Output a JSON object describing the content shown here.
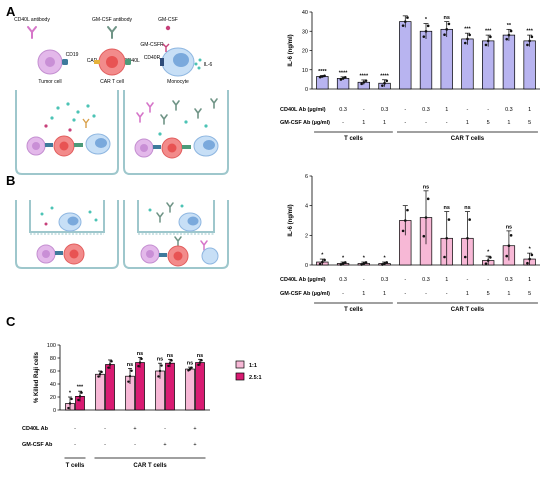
{
  "panels": {
    "a": "A",
    "b": "B",
    "c": "C"
  },
  "schematic": {
    "cd40l_antibody": "CD40L antibody",
    "gmcsf_antibody": "GM-CSF antibody",
    "gmcsf": "GM-CSF",
    "gmcsfr": "GM-CSFR",
    "cd19": "CD19",
    "car": "CAR",
    "cd40l": "CD40L",
    "cd40r": "CD40R",
    "il6": "IL-6",
    "tumor_cell": "Tumor cell",
    "car_t_cell": "CAR T cell",
    "monocyte": "Monocyte"
  },
  "chart_data": [
    {
      "type": "bar",
      "ylabel": "IL-6 (ng/ml)",
      "ylim": [
        0,
        40
      ],
      "yticks": [
        "0",
        "10",
        "20",
        "30",
        "40"
      ],
      "values": [
        6.5,
        5.5,
        3.5,
        3.0,
        35,
        30,
        31,
        26,
        25,
        28,
        25
      ],
      "errors": [
        0.5,
        0.8,
        1.2,
        1.8,
        3,
        4,
        4,
        3,
        3,
        3,
        3
      ],
      "significance": [
        "****",
        "****",
        "****",
        "****",
        "",
        "*",
        "ns",
        "***",
        "***",
        "**",
        "***"
      ],
      "color": "#b8b4f0",
      "cd40l_label": "CD40L Ab (µg/ml)",
      "gmcsf_label": "GM-CSF Ab (µg/ml)",
      "cd40l": [
        "-",
        "0.3",
        "-",
        "0.3",
        "-",
        "0.3",
        "1",
        "-",
        "-",
        "0.3",
        "1"
      ],
      "gmcsf": [
        "-",
        "-",
        "1",
        "1",
        "-",
        "-",
        "-",
        "1",
        "5",
        "1",
        "5"
      ],
      "groups": [
        "T cells",
        "CAR T cells"
      ]
    },
    {
      "type": "bar",
      "ylabel": "IL-6 (ng/ml)",
      "ylim": [
        0,
        6
      ],
      "yticks": [
        "0",
        "2",
        "4",
        "6"
      ],
      "values": [
        0.2,
        0.1,
        0.1,
        0.1,
        3.0,
        3.2,
        1.8,
        1.8,
        0.3,
        1.3,
        0.4
      ],
      "errors": [
        0.2,
        0.1,
        0.1,
        0.1,
        1.0,
        1.8,
        1.8,
        1.8,
        0.3,
        1.0,
        0.4
      ],
      "significance": [
        "*",
        "*",
        "*",
        "*",
        "",
        "ns",
        "ns",
        "ns",
        "*",
        "ns",
        "*"
      ],
      "color": "#f7b8d6",
      "cd40l_label": "CD40L Ab (µg/ml)",
      "gmcsf_label": "GM-CSF Ab (µg/ml)",
      "cd40l": [
        "-",
        "0.3",
        "-",
        "0.3",
        "-",
        "0.3",
        "1",
        "-",
        "-",
        "0.3",
        "1"
      ],
      "gmcsf": [
        "-",
        "-",
        "1",
        "1",
        "-",
        "-",
        "-",
        "1",
        "5",
        "1",
        "5"
      ],
      "groups": [
        "T cells",
        "CAR T cells"
      ]
    },
    {
      "type": "bar",
      "ylabel": "% Killed Raji cells",
      "ylim": [
        0,
        100
      ],
      "yticks": [
        "0",
        "20",
        "40",
        "60",
        "80",
        "100"
      ],
      "series": [
        {
          "name": "1:1",
          "color": "#f7b8d6",
          "values": [
            10,
            55,
            52,
            60,
            63
          ],
          "errors": [
            10,
            5,
            12,
            12,
            3
          ]
        },
        {
          "name": "2.5:1",
          "color": "#d81b72",
          "values": [
            21,
            70,
            73,
            72,
            73
          ],
          "errors": [
            8,
            7,
            8,
            6,
            5
          ]
        }
      ],
      "significance": [
        [
          "*",
          "***"
        ],
        [
          "",
          ""
        ],
        [
          "ns",
          "ns"
        ],
        [
          "ns",
          "ns"
        ],
        [
          "ns",
          "ns"
        ]
      ],
      "cd40l_label": "CD40L Ab",
      "gmcsf_label": "GM-CSF Ab",
      "cd40l": [
        "-",
        "-",
        "+",
        "-",
        "+"
      ],
      "gmcsf": [
        "-",
        "-",
        "-",
        "+",
        "+"
      ],
      "groups": [
        "T cells",
        "CAR T cells"
      ]
    }
  ]
}
